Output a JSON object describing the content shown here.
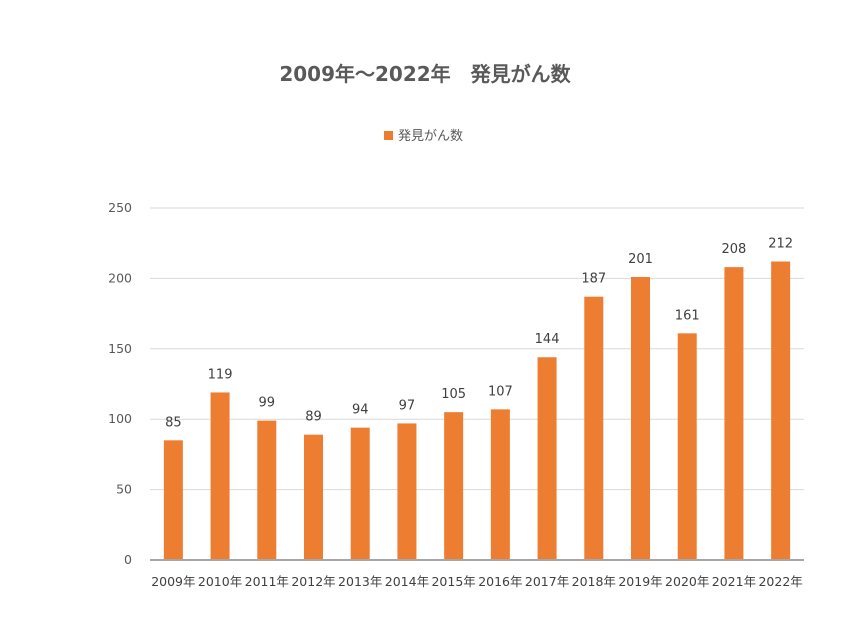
{
  "chart_data": {
    "type": "bar",
    "title": "2009年～2022年　発見がん数",
    "legend": {
      "position": "top",
      "entries": [
        "発見がん数"
      ]
    },
    "categories": [
      "2009年",
      "2010年",
      "2011年",
      "2012年",
      "2013年",
      "2014年",
      "2015年",
      "2016年",
      "2017年",
      "2018年",
      "2019年",
      "2020年",
      "2021年",
      "2022年"
    ],
    "series": [
      {
        "name": "発見がん数",
        "color": "#ED7D31",
        "values": [
          85,
          119,
          99,
          89,
          94,
          97,
          105,
          107,
          144,
          187,
          201,
          161,
          208,
          212
        ]
      }
    ],
    "y_ticks": [
      "0",
      "50",
      "100",
      "150",
      "200",
      "250"
    ],
    "ylim": [
      0,
      250
    ],
    "grid": true,
    "data_labels": true
  }
}
